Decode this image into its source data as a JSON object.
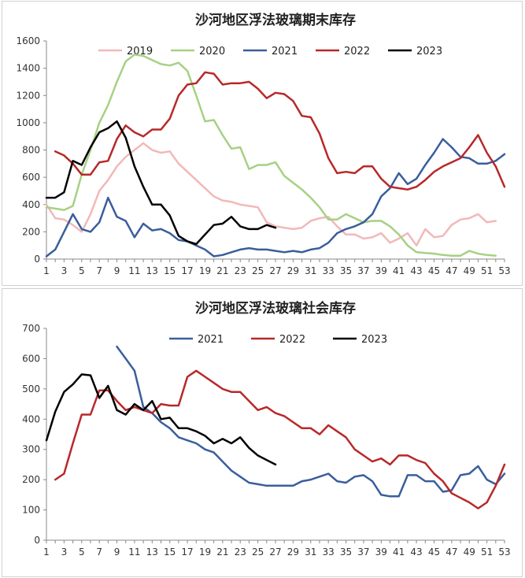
{
  "chart_data": [
    {
      "type": "line",
      "title": "沙河地区浮法玻璃期末库存",
      "xlabel": "",
      "ylabel": "",
      "ylim": [
        0,
        1600
      ],
      "yticks": [
        0,
        200,
        400,
        600,
        800,
        1000,
        1200,
        1400,
        1600
      ],
      "xlim": [
        1,
        53
      ],
      "xticks": [
        1,
        3,
        5,
        7,
        9,
        11,
        13,
        15,
        17,
        19,
        21,
        23,
        25,
        27,
        29,
        31,
        33,
        35,
        37,
        39,
        41,
        43,
        45,
        47,
        49,
        51,
        53
      ],
      "legend": "top",
      "series": [
        {
          "name": "2019",
          "color": "#f2b8b8",
          "x": [
            1,
            2,
            3,
            4,
            5,
            6,
            7,
            8,
            9,
            10,
            11,
            12,
            13,
            14,
            15,
            16,
            17,
            18,
            19,
            20,
            21,
            22,
            23,
            24,
            25,
            26,
            27,
            28,
            29,
            30,
            31,
            32,
            33,
            34,
            35,
            36,
            37,
            38,
            39,
            40,
            41,
            42,
            43,
            44,
            45,
            46,
            47,
            48,
            49,
            50,
            51,
            52
          ],
          "values": [
            400,
            300,
            290,
            250,
            200,
            330,
            500,
            580,
            680,
            750,
            800,
            850,
            800,
            780,
            790,
            700,
            640,
            580,
            520,
            460,
            430,
            420,
            400,
            390,
            380,
            270,
            240,
            230,
            220,
            230,
            280,
            300,
            310,
            240,
            180,
            180,
            150,
            160,
            190,
            120,
            150,
            190,
            100,
            220,
            160,
            170,
            250,
            290,
            300,
            330,
            270,
            280
          ]
        },
        {
          "name": "2020",
          "color": "#a6d184",
          "x": [
            1,
            2,
            3,
            4,
            5,
            6,
            7,
            8,
            9,
            10,
            11,
            12,
            13,
            14,
            15,
            16,
            17,
            18,
            19,
            20,
            21,
            22,
            23,
            24,
            25,
            26,
            27,
            28,
            29,
            30,
            31,
            32,
            33,
            34,
            35,
            36,
            37,
            38,
            39,
            40,
            41,
            42,
            43,
            44,
            45,
            46,
            47,
            48,
            49,
            50,
            51,
            52
          ],
          "values": [
            380,
            370,
            360,
            390,
            620,
            800,
            1000,
            1130,
            1300,
            1450,
            1500,
            1490,
            1460,
            1430,
            1420,
            1440,
            1380,
            1200,
            1010,
            1020,
            910,
            810,
            820,
            660,
            690,
            690,
            710,
            610,
            560,
            510,
            450,
            380,
            290,
            290,
            330,
            300,
            270,
            280,
            280,
            240,
            180,
            100,
            50,
            45,
            40,
            30,
            25,
            25,
            60,
            40,
            30,
            25
          ]
        },
        {
          "name": "2021",
          "color": "#3a5e9c",
          "x": [
            1,
            2,
            3,
            4,
            5,
            6,
            7,
            8,
            9,
            10,
            11,
            12,
            13,
            14,
            15,
            16,
            17,
            18,
            19,
            20,
            21,
            22,
            23,
            24,
            25,
            26,
            27,
            28,
            29,
            30,
            31,
            32,
            33,
            34,
            35,
            36,
            37,
            38,
            39,
            40,
            41,
            42,
            43,
            44,
            45,
            46,
            47,
            48,
            49,
            50,
            51,
            52,
            53
          ],
          "values": [
            20,
            70,
            200,
            330,
            220,
            200,
            270,
            450,
            310,
            280,
            160,
            260,
            210,
            220,
            190,
            140,
            130,
            100,
            70,
            20,
            30,
            50,
            70,
            80,
            70,
            70,
            60,
            50,
            60,
            50,
            70,
            80,
            120,
            190,
            220,
            240,
            270,
            330,
            460,
            520,
            630,
            550,
            590,
            690,
            780,
            880,
            820,
            750,
            740,
            700,
            700,
            720,
            770
          ]
        },
        {
          "name": "2022",
          "color": "#b8282a",
          "x": [
            2,
            3,
            4,
            5,
            6,
            7,
            8,
            9,
            10,
            11,
            12,
            13,
            14,
            15,
            16,
            17,
            18,
            19,
            20,
            21,
            22,
            23,
            24,
            25,
            26,
            27,
            28,
            29,
            30,
            31,
            32,
            33,
            34,
            35,
            36,
            37,
            38,
            39,
            40,
            41,
            42,
            43,
            44,
            45,
            46,
            47,
            48,
            49,
            50,
            51,
            52,
            53
          ],
          "values": [
            790,
            760,
            700,
            620,
            620,
            710,
            720,
            880,
            980,
            930,
            900,
            950,
            950,
            1030,
            1200,
            1280,
            1290,
            1370,
            1360,
            1280,
            1290,
            1290,
            1300,
            1250,
            1180,
            1220,
            1210,
            1160,
            1050,
            1040,
            920,
            740,
            630,
            640,
            630,
            680,
            680,
            590,
            530,
            520,
            510,
            530,
            580,
            640,
            680,
            710,
            740,
            820,
            910,
            780,
            680,
            530
          ]
        },
        {
          "name": "2023",
          "color": "#000000",
          "x": [
            1,
            2,
            3,
            4,
            5,
            6,
            7,
            8,
            9,
            10,
            11,
            12,
            13,
            14,
            15,
            16,
            17,
            18,
            19,
            20,
            21,
            22,
            23,
            24,
            25,
            26,
            27
          ],
          "values": [
            450,
            450,
            490,
            720,
            690,
            820,
            930,
            960,
            1010,
            890,
            680,
            530,
            400,
            400,
            320,
            170,
            130,
            110,
            180,
            250,
            260,
            310,
            240,
            220,
            220,
            250,
            230
          ]
        }
      ]
    },
    {
      "type": "line",
      "title": "沙河地区浮法玻璃社会库存",
      "xlabel": "",
      "ylabel": "",
      "ylim": [
        0,
        700
      ],
      "yticks": [
        0,
        100,
        200,
        300,
        400,
        500,
        600,
        700
      ],
      "xlim": [
        1,
        53
      ],
      "xticks": [
        1,
        3,
        5,
        7,
        9,
        11,
        13,
        15,
        17,
        19,
        21,
        23,
        25,
        27,
        29,
        31,
        33,
        35,
        37,
        39,
        41,
        43,
        45,
        47,
        49,
        51,
        53
      ],
      "legend": "top",
      "series": [
        {
          "name": "2021",
          "color": "#3a5e9c",
          "x": [
            9,
            10,
            11,
            12,
            13,
            14,
            15,
            16,
            17,
            18,
            19,
            20,
            21,
            22,
            23,
            24,
            25,
            26,
            27,
            28,
            29,
            30,
            31,
            32,
            33,
            34,
            35,
            36,
            37,
            38,
            39,
            40,
            41,
            42,
            43,
            44,
            45,
            46,
            47,
            48,
            49,
            50,
            51,
            52,
            53
          ],
          "values": [
            640,
            600,
            560,
            440,
            420,
            390,
            370,
            340,
            330,
            320,
            300,
            290,
            260,
            230,
            210,
            190,
            185,
            180,
            180,
            180,
            180,
            195,
            200,
            210,
            220,
            195,
            190,
            210,
            215,
            195,
            150,
            145,
            145,
            215,
            215,
            195,
            195,
            160,
            165,
            215,
            220,
            245,
            200,
            185,
            220
          ]
        },
        {
          "name": "2022",
          "color": "#b8282a",
          "x": [
            2,
            3,
            4,
            5,
            6,
            7,
            8,
            9,
            10,
            11,
            12,
            13,
            14,
            15,
            16,
            17,
            18,
            19,
            20,
            21,
            22,
            23,
            24,
            25,
            26,
            27,
            28,
            29,
            30,
            31,
            32,
            33,
            34,
            35,
            36,
            37,
            38,
            39,
            40,
            41,
            42,
            43,
            44,
            45,
            46,
            47,
            48,
            49,
            50,
            51,
            52,
            53
          ],
          "values": [
            200,
            220,
            320,
            415,
            415,
            495,
            495,
            460,
            430,
            440,
            430,
            420,
            450,
            445,
            445,
            540,
            560,
            540,
            520,
            500,
            490,
            490,
            460,
            430,
            440,
            420,
            410,
            390,
            370,
            370,
            350,
            380,
            360,
            340,
            300,
            280,
            260,
            270,
            250,
            280,
            280,
            265,
            255,
            220,
            195,
            155,
            140,
            125,
            105,
            125,
            180,
            250
          ]
        },
        {
          "name": "2023",
          "color": "#000000",
          "x": [
            1,
            2,
            3,
            4,
            5,
            6,
            7,
            8,
            9,
            10,
            11,
            12,
            13,
            14,
            15,
            16,
            17,
            18,
            19,
            20,
            21,
            22,
            23,
            24,
            25,
            26,
            27
          ],
          "values": [
            330,
            425,
            490,
            515,
            548,
            545,
            470,
            510,
            430,
            415,
            450,
            430,
            460,
            400,
            405,
            370,
            370,
            360,
            345,
            320,
            335,
            320,
            340,
            305,
            280,
            265,
            250
          ]
        }
      ]
    }
  ]
}
